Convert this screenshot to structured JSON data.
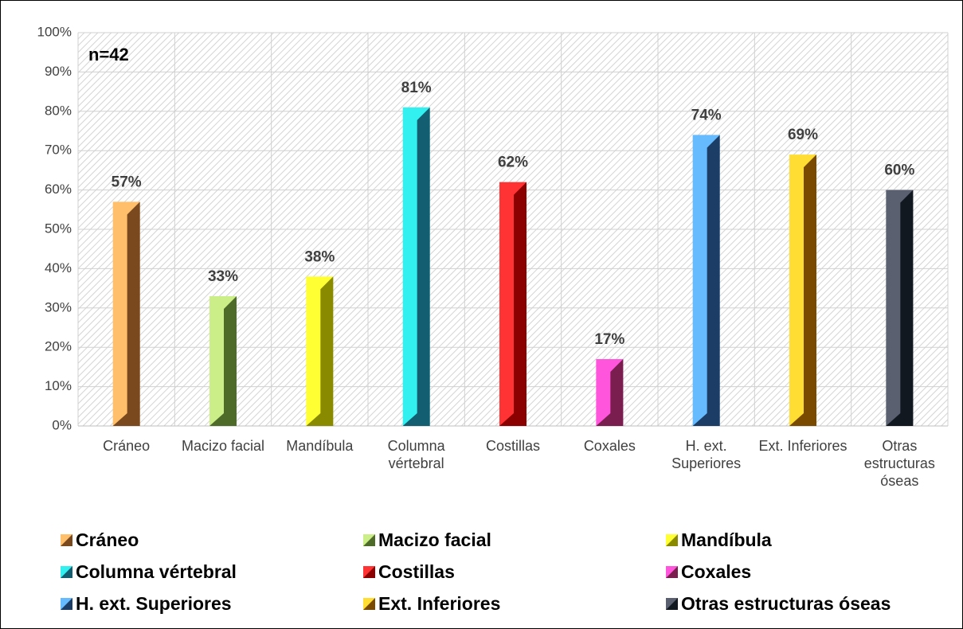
{
  "chart_data": {
    "type": "bar",
    "annotation": "n=42",
    "categories": [
      "Cráneo",
      "Macizo facial",
      "Mandíbula",
      "Columna vértebral",
      "Costillas",
      "Coxales",
      "H. ext. Superiores",
      "Ext. Inferiores",
      "Otras estructuras óseas"
    ],
    "values": [
      57,
      33,
      38,
      81,
      62,
      17,
      74,
      69,
      60
    ],
    "value_labels": [
      "57%",
      "33%",
      "38%",
      "81%",
      "62%",
      "17%",
      "74%",
      "69%",
      "60%"
    ],
    "colors": [
      "#FFBF6B",
      "#CCEE88",
      "#FFFF33",
      "#33F0F0",
      "#FF3333",
      "#FF55DD",
      "#66BBFF",
      "#FFDD33",
      "#5A6070"
    ],
    "side_colors": [
      "#7A4A1E",
      "#4F6B2A",
      "#8A8A00",
      "#135E70",
      "#8B0000",
      "#7A1E50",
      "#1B3D66",
      "#7A4A00",
      "#111820"
    ],
    "ylim": [
      0,
      100
    ],
    "yticks": [
      {
        "value": 0,
        "label": "0%"
      },
      {
        "value": 10,
        "label": "10%"
      },
      {
        "value": 20,
        "label": "20%"
      },
      {
        "value": 30,
        "label": "30%"
      },
      {
        "value": 40,
        "label": "40%"
      },
      {
        "value": 50,
        "label": "50%"
      },
      {
        "value": 60,
        "label": "60%"
      },
      {
        "value": 70,
        "label": "70%"
      },
      {
        "value": 80,
        "label": "80%"
      },
      {
        "value": 90,
        "label": "90%"
      },
      {
        "value": 100,
        "label": "100%"
      }
    ],
    "grid": true,
    "legend": "bottom"
  }
}
